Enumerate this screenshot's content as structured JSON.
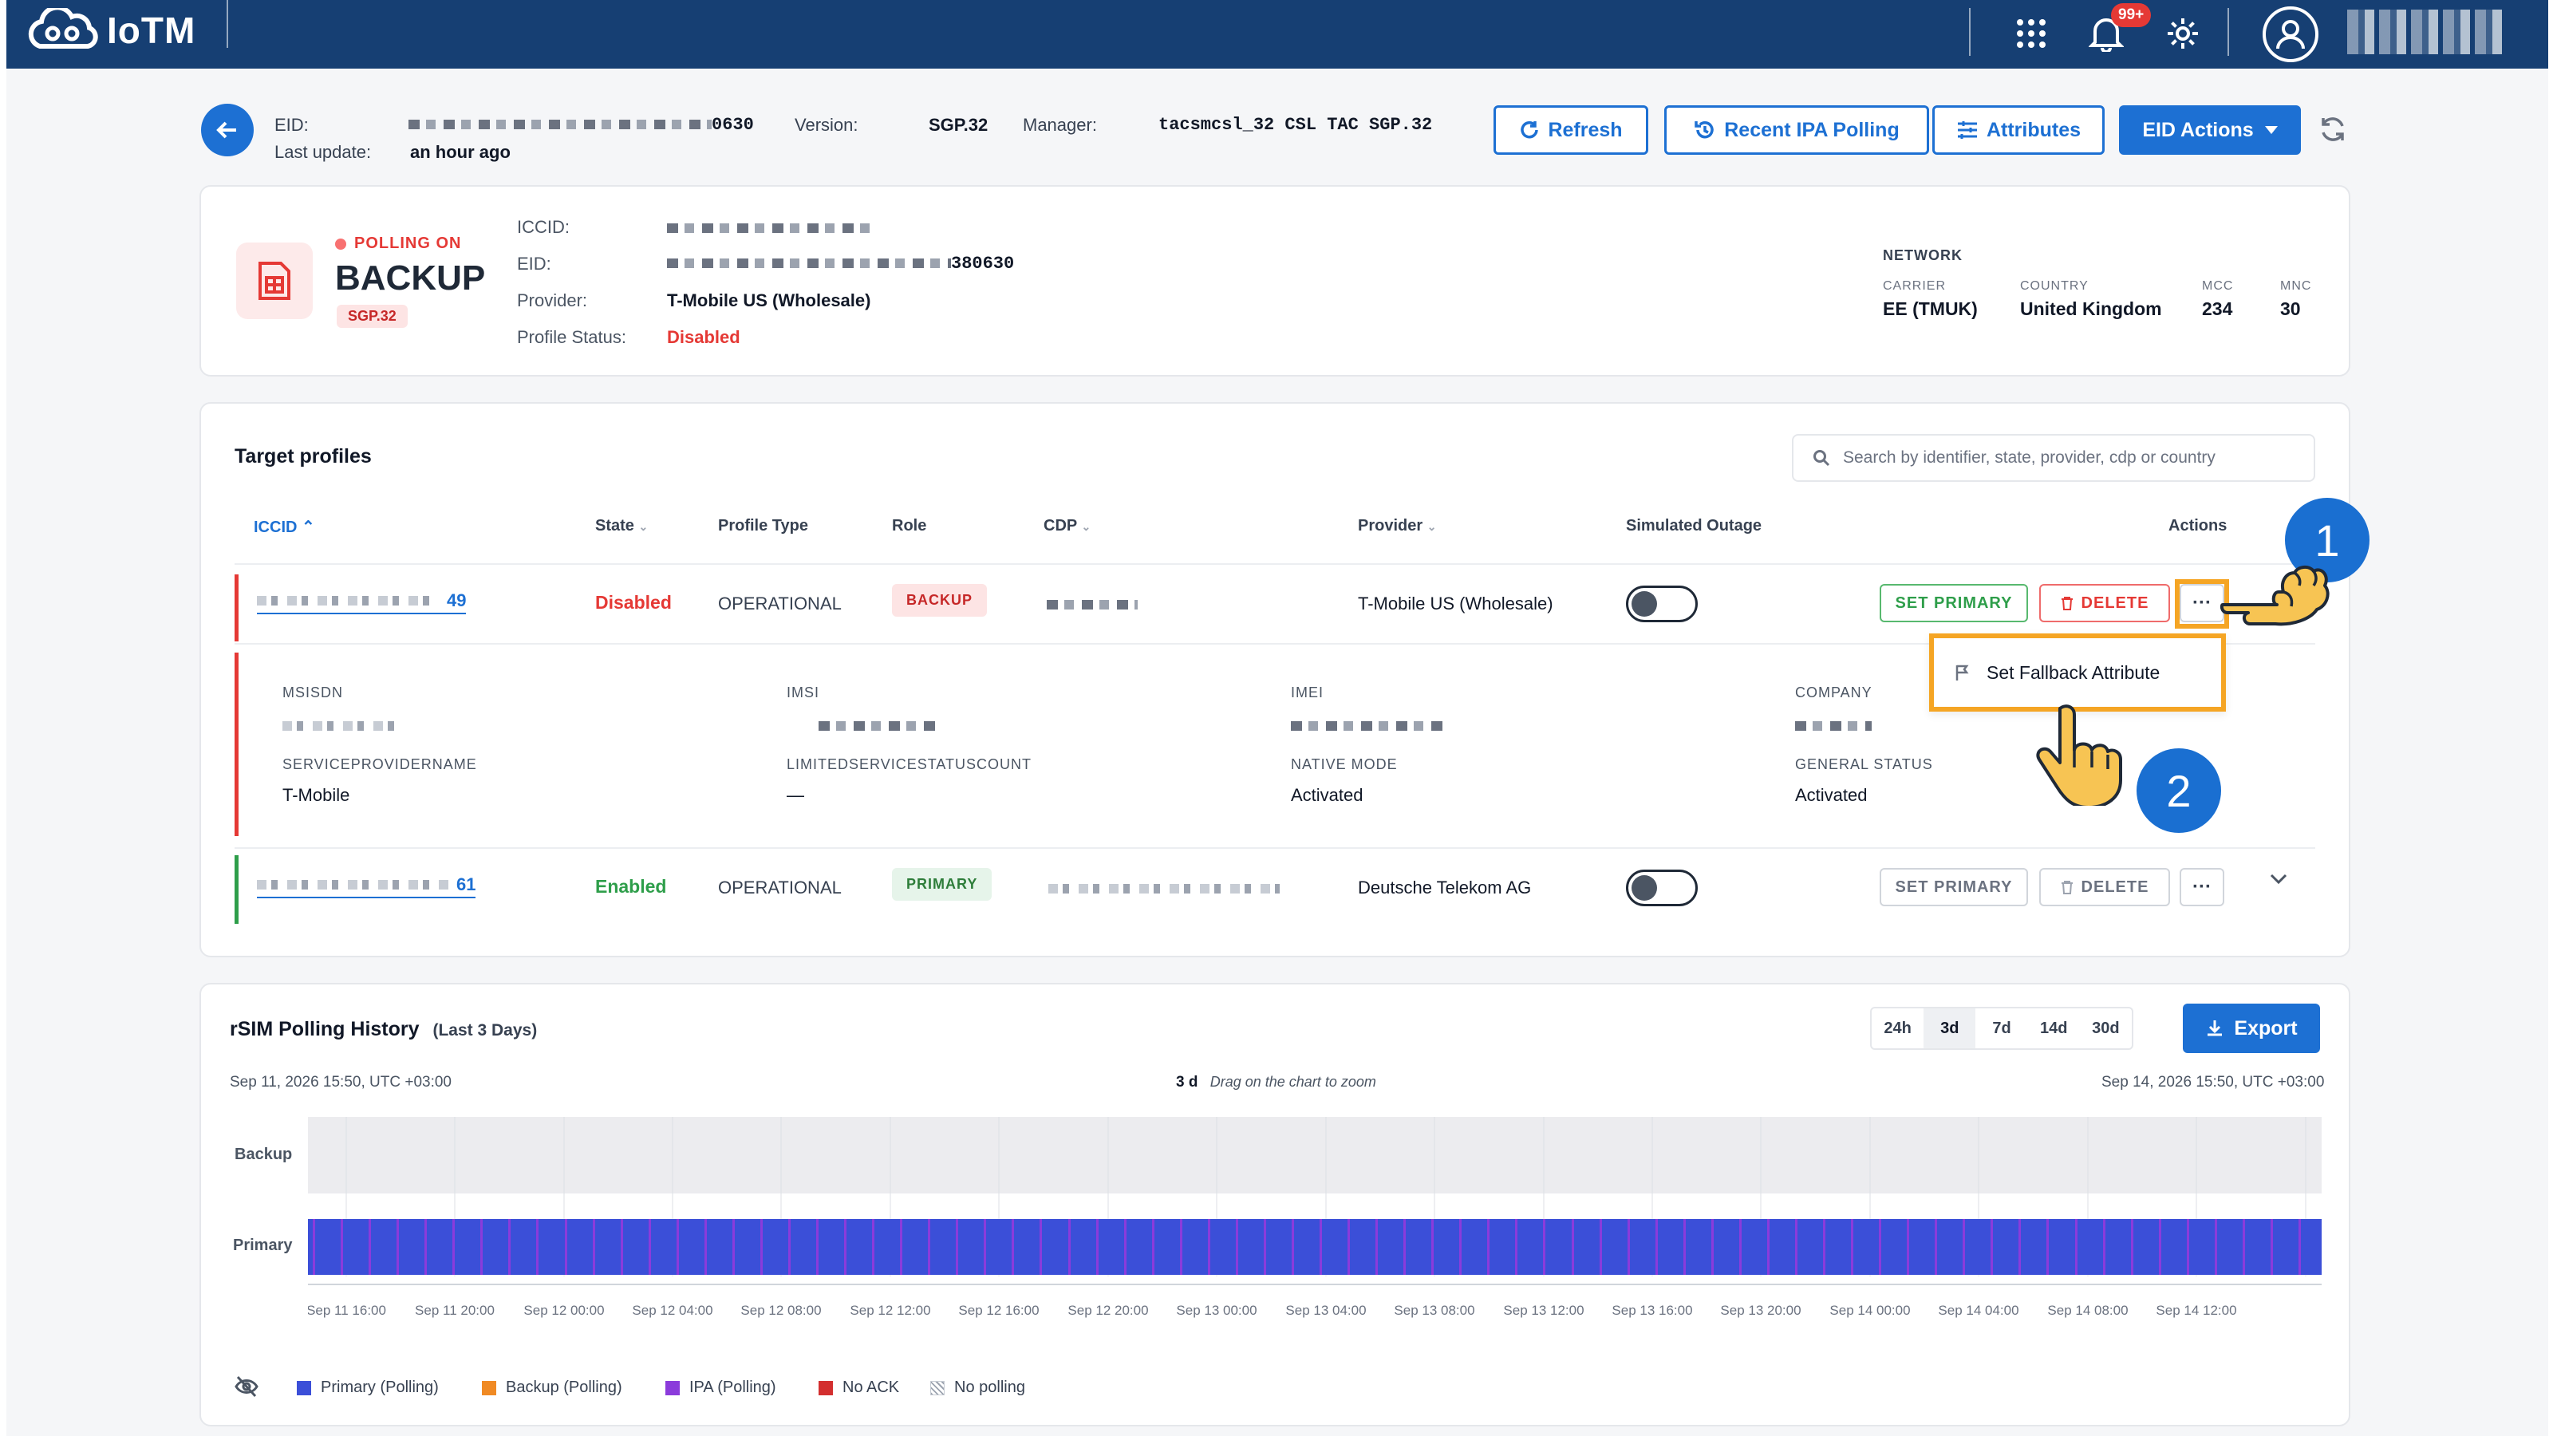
{
  "app": {
    "name": "IoTM",
    "notifications_badge": "99+"
  },
  "header": {
    "eid_label": "EID:",
    "eid_suffix": "0630",
    "last_update_label": "Last update:",
    "last_update_value": "an hour ago",
    "version_label": "Version:",
    "version_value": "SGP.32",
    "manager_label": "Manager:",
    "manager_value": "tacsmcsl_32 CSL TAC SGP.32",
    "buttons": {
      "refresh": "Refresh",
      "recent_ipa": "Recent IPA Polling",
      "attributes": "Attributes",
      "eid_actions": "EID Actions"
    }
  },
  "profile_card": {
    "polling_status": "POLLING ON",
    "role_title": "BACKUP",
    "badge": "SGP.32",
    "iccid_label": "ICCID:",
    "eid_label": "EID:",
    "eid_suffix": "380630",
    "provider_label": "Provider:",
    "provider_value": "T-Mobile US (Wholesale)",
    "status_label": "Profile Status:",
    "status_value": "Disabled",
    "network": {
      "heading": "NETWORK",
      "carrier_label": "CARRIER",
      "carrier_value": "EE (TMUK)",
      "country_label": "COUNTRY",
      "country_value": "United Kingdom",
      "mcc_label": "MCC",
      "mcc_value": "234",
      "mnc_label": "MNC",
      "mnc_value": "30"
    }
  },
  "target_profiles": {
    "title": "Target profiles",
    "search_placeholder": "Search by identifier, state, provider, cdp or country",
    "columns": {
      "iccid": "ICCID",
      "state": "State",
      "profile_type": "Profile Type",
      "role": "Role",
      "cdp": "CDP",
      "provider": "Provider",
      "simulated_outage": "Simulated Outage",
      "actions": "Actions"
    },
    "rows": [
      {
        "iccid_suffix": "49",
        "state": "Disabled",
        "profile_type": "OPERATIONAL",
        "role": "BACKUP",
        "provider": "T-Mobile US (Wholesale)",
        "set_primary": "SET PRIMARY",
        "delete": "DELETE",
        "more": "···"
      },
      {
        "iccid_suffix": "61",
        "state": "Enabled",
        "profile_type": "OPERATIONAL",
        "role": "PRIMARY",
        "provider": "Deutsche Telekom AG",
        "set_primary": "SET PRIMARY",
        "delete": "DELETE",
        "more": "···"
      }
    ],
    "details": {
      "msisdn_label": "MSISDN",
      "imsi_label": "IMSI",
      "imei_label": "IMEI",
      "company_label": "COMPANY",
      "spn_label": "SERVICEPROVIDERNAME",
      "spn_value": "T-Mobile",
      "lssc_label": "LIMITEDSERVICESTATUSCOUNT",
      "lssc_value": "—",
      "native_mode_label": "NATIVE MODE",
      "native_mode_value": "Activated",
      "general_status_label": "GENERAL STATUS",
      "general_status_value": "Activated"
    },
    "dropdown_item": "Set Fallback Attribute",
    "step_1": "1",
    "step_2": "2"
  },
  "history": {
    "title": "rSIM Polling History",
    "subtitle": "(Last 3 Days)",
    "ranges": [
      "24h",
      "3d",
      "7d",
      "14d",
      "30d"
    ],
    "active_range": "3d",
    "export": "Export",
    "start_label": "Sep 11, 2026 15:50, UTC +03:00",
    "end_label": "Sep 14, 2026 15:50, UTC +03:00",
    "zoom_span": "3 d",
    "zoom_hint": "Drag on the chart to zoom",
    "lanes": [
      "Backup",
      "Primary"
    ],
    "x_ticks": [
      "Sep 11 16:00",
      "Sep 11 20:00",
      "Sep 12 00:00",
      "Sep 12 04:00",
      "Sep 12 08:00",
      "Sep 12 12:00",
      "Sep 12 16:00",
      "Sep 12 20:00",
      "Sep 13 00:00",
      "Sep 13 04:00",
      "Sep 13 08:00",
      "Sep 13 12:00",
      "Sep 13 16:00",
      "Sep 13 20:00",
      "Sep 14 00:00",
      "Sep 14 04:00",
      "Sep 14 08:00",
      "Sep 14 12:00"
    ],
    "legend": [
      {
        "label": "Primary (Polling)",
        "color": "#3b4fd8"
      },
      {
        "label": "Backup (Polling)",
        "color": "#f08a24"
      },
      {
        "label": "IPA (Polling)",
        "color": "#8b3bdb"
      },
      {
        "label": "No ACK",
        "color": "#d32f2f"
      },
      {
        "label": "No polling",
        "color": "#c7ccd4"
      }
    ]
  },
  "colors": {
    "nav": "#163f73",
    "accent": "#1d70d3",
    "annotation": "#f5a524",
    "primary_bar": "#3b4fd8",
    "ipa_marker": "#8b3bdb"
  }
}
